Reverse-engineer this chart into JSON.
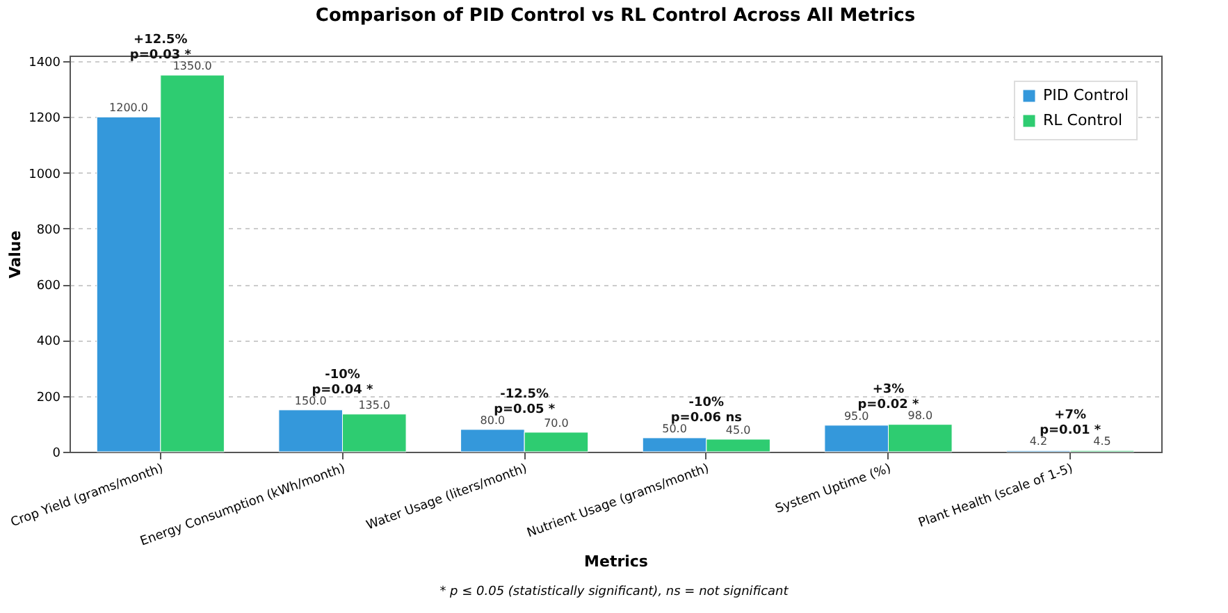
{
  "chart_data": {
    "type": "bar",
    "title": "Comparison of PID Control vs RL Control Across All Metrics",
    "xlabel": "Metrics",
    "ylabel": "Value",
    "categories": [
      "Crop Yield (grams/month)",
      "Energy Consumption (kWh/month)",
      "Water Usage (liters/month)",
      "Nutrient Usage (grams/month)",
      "System Uptime (%)",
      "Plant Health (scale of 1-5)"
    ],
    "series": [
      {
        "name": "PID Control",
        "color": "#3498db",
        "values": [
          1200,
          150,
          80,
          50,
          95,
          4.2
        ],
        "value_labels": [
          "1200.0",
          "150.0",
          "80.0",
          "50.0",
          "95.0",
          "4.2"
        ]
      },
      {
        "name": "RL Control",
        "color": "#2ecc71",
        "values": [
          1350,
          135,
          70,
          45,
          98,
          4.5
        ],
        "value_labels": [
          "1350.0",
          "135.0",
          "70.0",
          "45.0",
          "98.0",
          "4.5"
        ]
      }
    ],
    "ylim": [
      0,
      1420
    ],
    "yticks": [
      0,
      200,
      400,
      600,
      800,
      1000,
      1200,
      1400
    ],
    "grid": "y",
    "legend": "top right",
    "annotations": [
      {
        "text": "+12.5%\np=0.03 *",
        "x": "Crop Yield (grams/month)",
        "y": 1350
      },
      {
        "text": "-10%\np=0.04 *",
        "x": "Energy Consumption (kWh/month)",
        "y": 150
      },
      {
        "text": "-12.5%\np=0.05 *",
        "x": "Water Usage (liters/month)",
        "y": 80
      },
      {
        "text": "-10%\np=0.06 ns",
        "x": "Nutrient Usage (grams/month)",
        "y": 50
      },
      {
        "text": "+3%\np=0.02 *",
        "x": "System Uptime (%)",
        "y": 98
      },
      {
        "text": "+7%\np=0.01 *",
        "x": "Plant Health (scale of 1-5)",
        "y": 4.5
      },
      "* p ≤ 0.05 (statistically significant), ns = not significant"
    ]
  }
}
